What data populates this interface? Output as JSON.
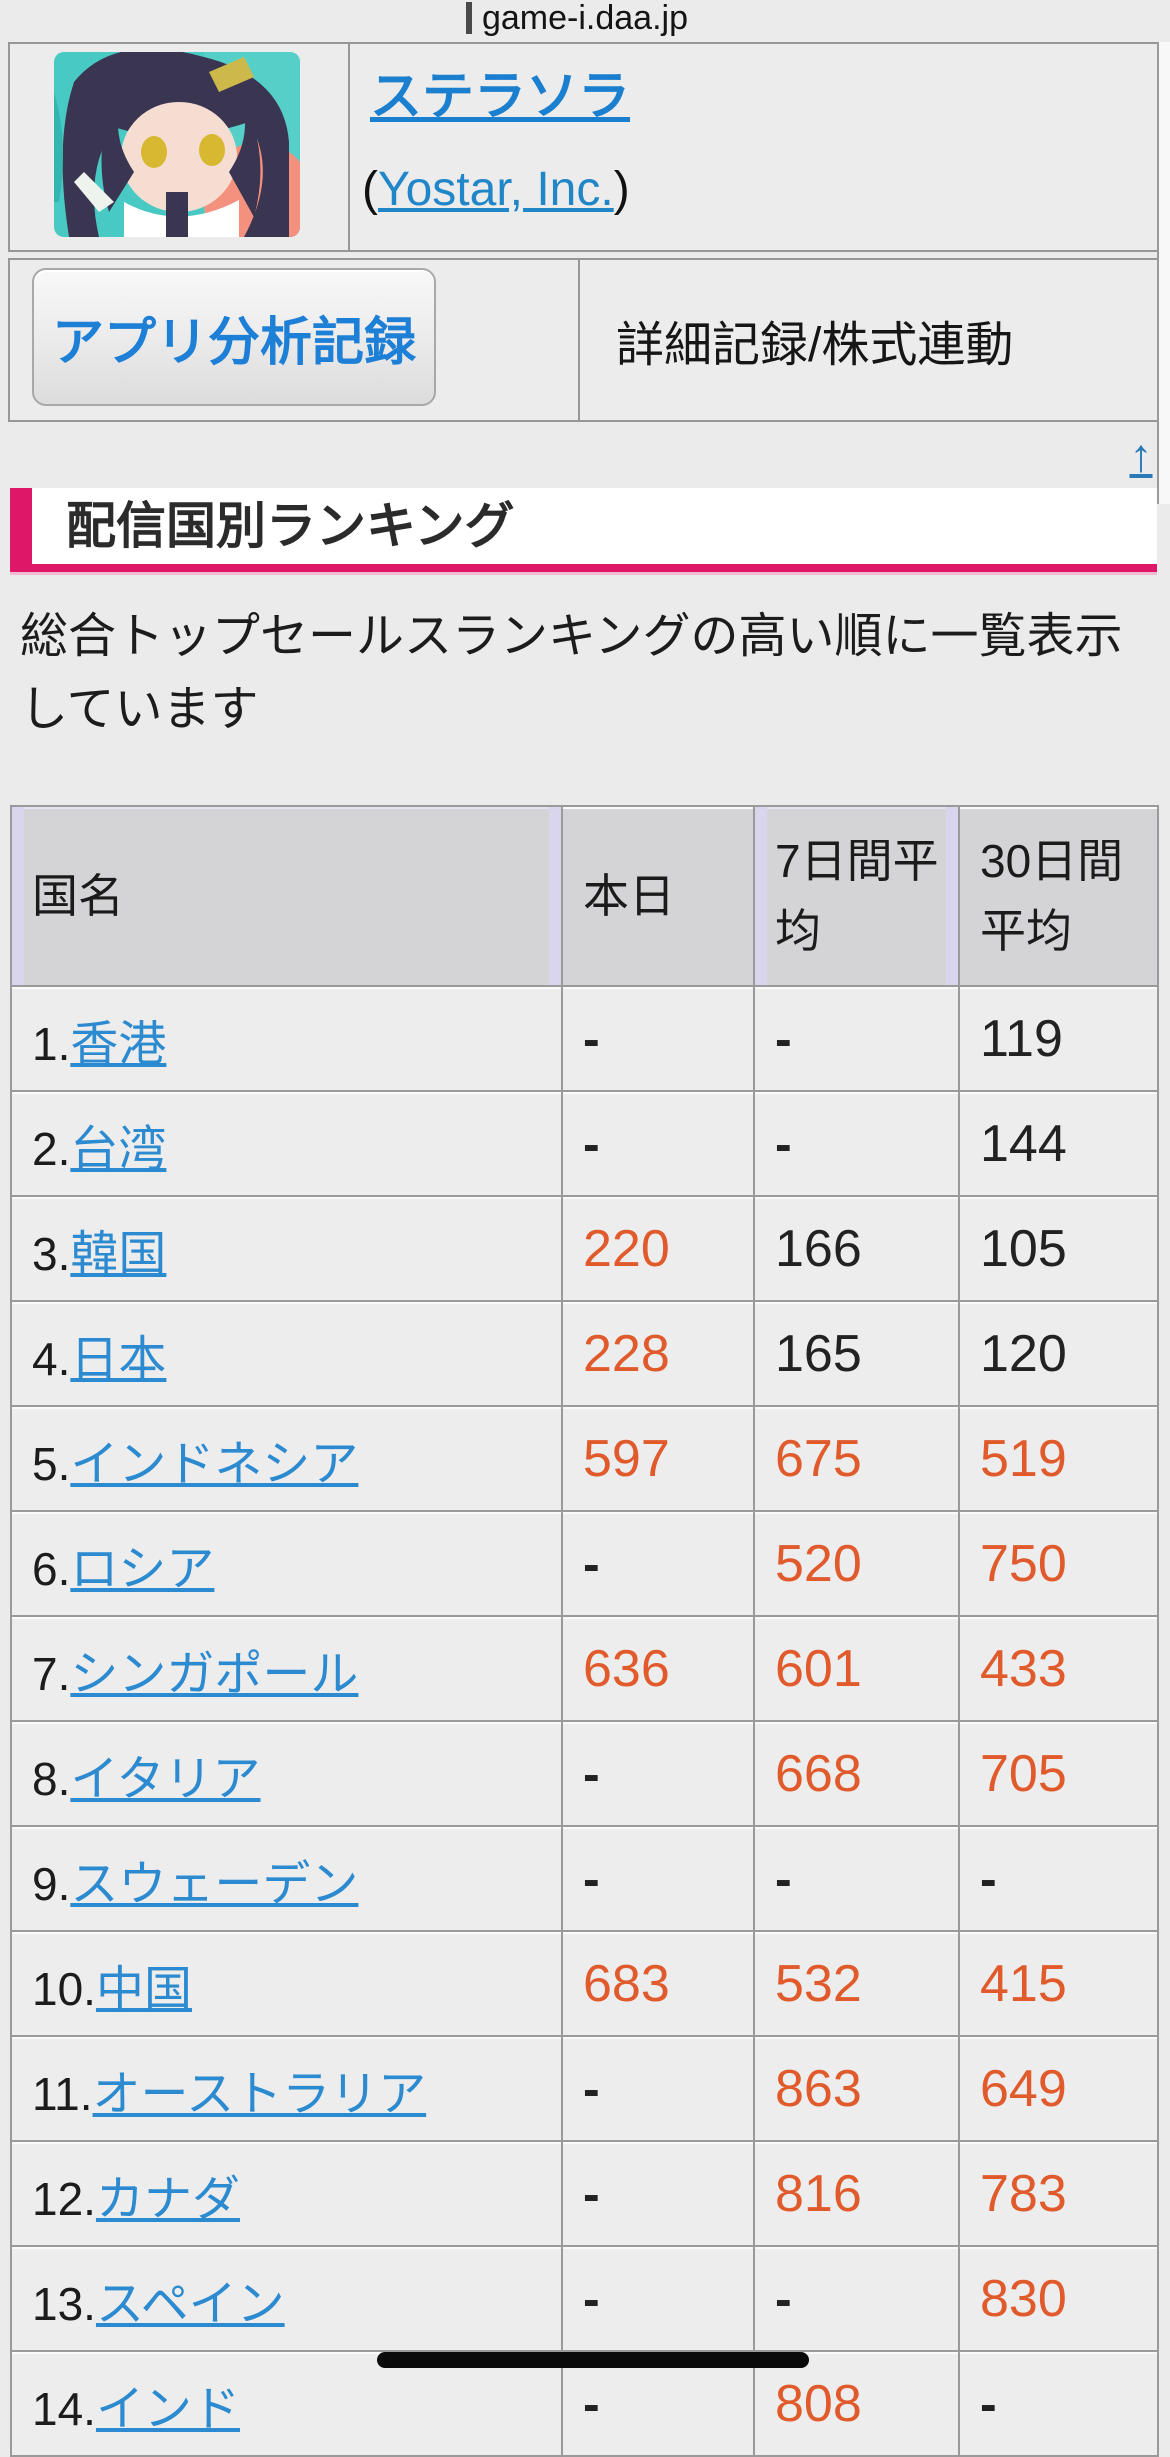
{
  "browser": {
    "url": "game-i.daa.jp"
  },
  "app": {
    "title_link": "ステラソラ",
    "developer_open": "(",
    "developer_link": "Yostar, Inc.",
    "developer_close": ")"
  },
  "toolbar": {
    "analysis_button_label": "アプリ分析記録",
    "detail_label": "詳細記録/株式連動"
  },
  "back_to_top_label": "↑",
  "section": {
    "title": "配信国別ランキング",
    "description": "総合トップセールスランキングの高い順に一覧表示しています"
  },
  "table": {
    "headers": [
      "国名",
      "本日",
      "7日間平均",
      "30日間平均"
    ],
    "rows": [
      {
        "rank": "1.",
        "country": "香港",
        "today": {
          "text": "-",
          "hot": false
        },
        "avg7": {
          "text": "-",
          "hot": false
        },
        "avg30": {
          "text": "119",
          "hot": false
        }
      },
      {
        "rank": "2.",
        "country": "台湾",
        "today": {
          "text": "-",
          "hot": false
        },
        "avg7": {
          "text": "-",
          "hot": false
        },
        "avg30": {
          "text": "144",
          "hot": false
        }
      },
      {
        "rank": "3.",
        "country": "韓国",
        "today": {
          "text": "220",
          "hot": true
        },
        "avg7": {
          "text": "166",
          "hot": false
        },
        "avg30": {
          "text": "105",
          "hot": false
        }
      },
      {
        "rank": "4.",
        "country": "日本",
        "today": {
          "text": "228",
          "hot": true
        },
        "avg7": {
          "text": "165",
          "hot": false
        },
        "avg30": {
          "text": "120",
          "hot": false
        }
      },
      {
        "rank": "5.",
        "country": "インドネシア",
        "today": {
          "text": "597",
          "hot": true
        },
        "avg7": {
          "text": "675",
          "hot": true
        },
        "avg30": {
          "text": "519",
          "hot": true
        }
      },
      {
        "rank": "6.",
        "country": "ロシア",
        "today": {
          "text": "-",
          "hot": false
        },
        "avg7": {
          "text": "520",
          "hot": true
        },
        "avg30": {
          "text": "750",
          "hot": true
        }
      },
      {
        "rank": "7.",
        "country": "シンガポール",
        "today": {
          "text": "636",
          "hot": true
        },
        "avg7": {
          "text": "601",
          "hot": true
        },
        "avg30": {
          "text": "433",
          "hot": true
        }
      },
      {
        "rank": "8.",
        "country": "イタリア",
        "today": {
          "text": "-",
          "hot": false
        },
        "avg7": {
          "text": "668",
          "hot": true
        },
        "avg30": {
          "text": "705",
          "hot": true
        }
      },
      {
        "rank": "9.",
        "country": "スウェーデン",
        "today": {
          "text": "-",
          "hot": false
        },
        "avg7": {
          "text": "-",
          "hot": false
        },
        "avg30": {
          "text": "-",
          "hot": false
        }
      },
      {
        "rank": "10.",
        "country": "中国",
        "today": {
          "text": "683",
          "hot": true
        },
        "avg7": {
          "text": "532",
          "hot": true
        },
        "avg30": {
          "text": "415",
          "hot": true
        }
      },
      {
        "rank": "11.",
        "country": "オーストラリア",
        "today": {
          "text": "-",
          "hot": false
        },
        "avg7": {
          "text": "863",
          "hot": true
        },
        "avg30": {
          "text": "649",
          "hot": true
        }
      },
      {
        "rank": "12.",
        "country": "カナダ",
        "today": {
          "text": "-",
          "hot": false
        },
        "avg7": {
          "text": "816",
          "hot": true
        },
        "avg30": {
          "text": "783",
          "hot": true
        }
      },
      {
        "rank": "13.",
        "country": "スペイン",
        "today": {
          "text": "-",
          "hot": false
        },
        "avg7": {
          "text": "-",
          "hot": false
        },
        "avg30": {
          "text": "830",
          "hot": true
        }
      },
      {
        "rank": "14.",
        "country": "インド",
        "today": {
          "text": "-",
          "hot": false
        },
        "avg7": {
          "text": "808",
          "hot": true
        },
        "avg30": {
          "text": "-",
          "hot": false
        }
      }
    ]
  },
  "colors": {
    "accent_crimson": "#df1769",
    "link_blue": "#2b8ad0",
    "hot_orange": "#e05a2b",
    "header_lavender": "#d9d5ec"
  }
}
